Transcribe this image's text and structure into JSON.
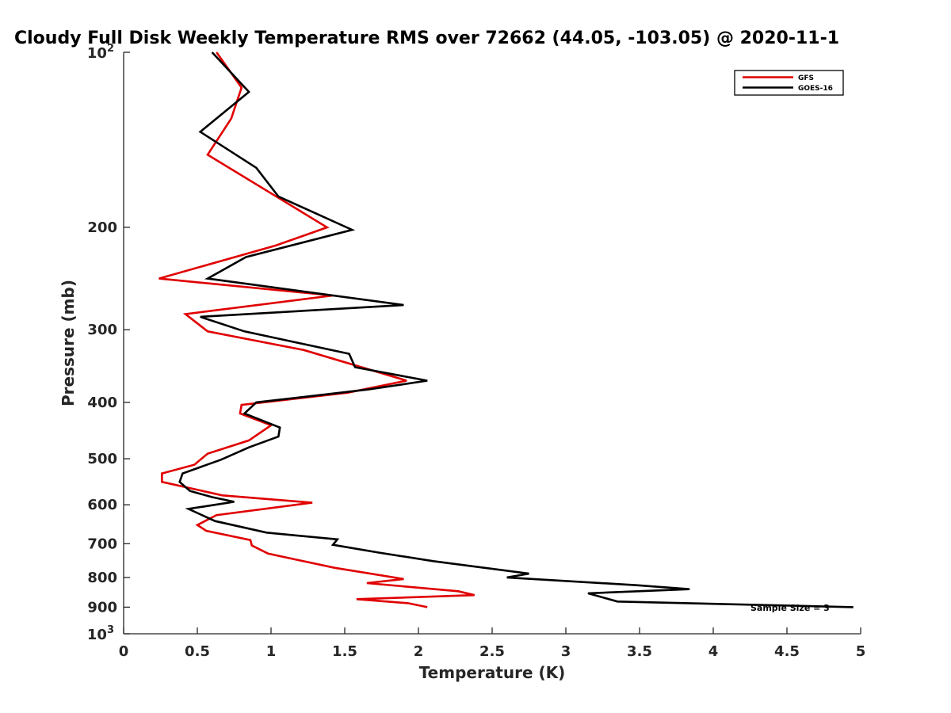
{
  "chart_data": {
    "type": "line",
    "title": "Cloudy Full Disk Weekly Temperature RMS over 72662 (44.05, -103.05) @ 2020-11-1",
    "xlabel": "Temperature (K)",
    "ylabel": "Pressure (mb)",
    "xlim": [
      0,
      5
    ],
    "ylim": [
      100,
      1000
    ],
    "y_scale": "log",
    "y_reversed": true,
    "grid": false,
    "legend_position": "top-right",
    "x_ticks": [
      "0",
      "0.5",
      "1",
      "1.5",
      "2",
      "2.5",
      "3",
      "3.5",
      "4",
      "4.5",
      "5"
    ],
    "y_ticks": [
      {
        "value": 100,
        "base": "10",
        "exp": "2"
      },
      {
        "value": 200,
        "label": "200"
      },
      {
        "value": 300,
        "label": "300"
      },
      {
        "value": 400,
        "label": "400"
      },
      {
        "value": 500,
        "label": "500"
      },
      {
        "value": 600,
        "label": "600"
      },
      {
        "value": 700,
        "label": "700"
      },
      {
        "value": 800,
        "label": "800"
      },
      {
        "value": 900,
        "label": "900"
      },
      {
        "value": 1000,
        "base": "10",
        "exp": "3"
      }
    ],
    "annotation": "Sample Size = 3",
    "series": [
      {
        "name": "GFS",
        "color": "#e00000",
        "points": [
          [
            0.63,
            100
          ],
          [
            0.8,
            115
          ],
          [
            0.73,
            130
          ],
          [
            0.57,
            150
          ],
          [
            1.38,
            200
          ],
          [
            1.03,
            215
          ],
          [
            0.24,
            245
          ],
          [
            1.42,
            262
          ],
          [
            0.42,
            282
          ],
          [
            0.57,
            302
          ],
          [
            1.22,
            325
          ],
          [
            1.92,
            367
          ],
          [
            1.52,
            385
          ],
          [
            0.8,
            404
          ],
          [
            0.79,
            418
          ],
          [
            1.0,
            438
          ],
          [
            0.85,
            465
          ],
          [
            0.57,
            490
          ],
          [
            0.48,
            512
          ],
          [
            0.26,
            530
          ],
          [
            0.26,
            548
          ],
          [
            0.67,
            578
          ],
          [
            1.28,
            595
          ],
          [
            0.63,
            625
          ],
          [
            0.5,
            650
          ],
          [
            0.56,
            665
          ],
          [
            0.86,
            690
          ],
          [
            0.87,
            705
          ],
          [
            0.98,
            728
          ],
          [
            1.43,
            770
          ],
          [
            1.9,
            805
          ],
          [
            1.65,
            818
          ],
          [
            2.27,
            845
          ],
          [
            2.38,
            858
          ],
          [
            1.58,
            872
          ],
          [
            1.93,
            886
          ],
          [
            2.06,
            900
          ]
        ]
      },
      {
        "name": "GOES-16",
        "color": "#000000",
        "points": [
          [
            0.6,
            100
          ],
          [
            0.85,
            117
          ],
          [
            0.52,
            137
          ],
          [
            0.9,
            158
          ],
          [
            1.05,
            177
          ],
          [
            1.55,
            202
          ],
          [
            0.83,
            225
          ],
          [
            0.57,
            245
          ],
          [
            1.9,
            272
          ],
          [
            0.52,
            285
          ],
          [
            0.82,
            302
          ],
          [
            1.53,
            330
          ],
          [
            1.57,
            348
          ],
          [
            2.06,
            367
          ],
          [
            1.66,
            380
          ],
          [
            0.9,
            400
          ],
          [
            0.82,
            418
          ],
          [
            1.06,
            442
          ],
          [
            1.05,
            458
          ],
          [
            0.85,
            478
          ],
          [
            0.66,
            502
          ],
          [
            0.4,
            530
          ],
          [
            0.38,
            548
          ],
          [
            0.45,
            568
          ],
          [
            0.6,
            582
          ],
          [
            0.75,
            593
          ],
          [
            0.44,
            610
          ],
          [
            0.62,
            640
          ],
          [
            0.97,
            670
          ],
          [
            1.45,
            688
          ],
          [
            1.42,
            703
          ],
          [
            1.73,
            725
          ],
          [
            2.1,
            750
          ],
          [
            2.75,
            788
          ],
          [
            2.6,
            800
          ],
          [
            3.48,
            825
          ],
          [
            3.84,
            838
          ],
          [
            3.15,
            852
          ],
          [
            3.35,
            880
          ],
          [
            4.95,
            900
          ]
        ]
      }
    ]
  }
}
